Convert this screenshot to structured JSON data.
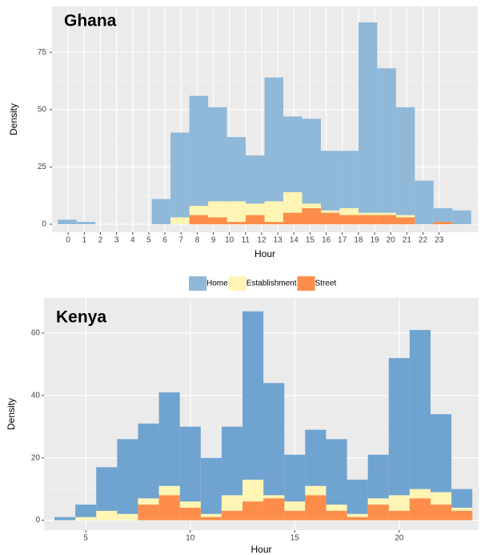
{
  "chart_data": [
    {
      "type": "histogram",
      "title": "Ghana",
      "xlabel": "Hour",
      "ylabel": "Density",
      "bins": [
        -0.64,
        0.525,
        1.69,
        2.855,
        4.02,
        5.185,
        6.35,
        7.515,
        8.68,
        9.845,
        11.01,
        12.175,
        13.34,
        14.505,
        15.67,
        16.835,
        18.0,
        19.165,
        20.33,
        21.495,
        22.66,
        23.825,
        24.99
      ],
      "series": [
        {
          "name": "Home",
          "color": "#8fb8d9",
          "values": [
            2,
            1,
            0,
            0,
            0,
            11,
            40,
            56,
            51,
            38,
            30,
            64,
            47,
            46,
            32,
            32,
            88,
            68,
            51,
            19,
            7,
            6
          ]
        },
        {
          "name": "Establishment",
          "color": "#fff5b5",
          "values": [
            0,
            0,
            0,
            0,
            0,
            0,
            3,
            8,
            10,
            10,
            9,
            10,
            14,
            9,
            6,
            7,
            5,
            5,
            4,
            0,
            1,
            0
          ]
        },
        {
          "name": "Street",
          "color": "#fd8d4a",
          "values": [
            0,
            0,
            0,
            0,
            0,
            0,
            0,
            4,
            3,
            1,
            4,
            1,
            5,
            7,
            5,
            4,
            4,
            4,
            3,
            0,
            1,
            0
          ]
        }
      ],
      "xlim": [
        -1,
        25.4
      ],
      "xticks": [
        0,
        1,
        2,
        3,
        4,
        5,
        6,
        7,
        8,
        9,
        10,
        11,
        12,
        13,
        14,
        15,
        16,
        17,
        18,
        19,
        20,
        21,
        22,
        23
      ],
      "ylim": [
        -3.5,
        95
      ],
      "yticks": [
        0,
        25,
        50,
        75
      ],
      "grid": true,
      "legend": "bottom"
    },
    {
      "type": "histogram",
      "title": "Kenya",
      "xlabel": "Hour",
      "ylabel": "Density",
      "bins": [
        3.5,
        4.5,
        5.5,
        6.5,
        7.5,
        8.5,
        9.5,
        10.5,
        11.5,
        12.5,
        13.5,
        14.5,
        15.5,
        16.5,
        17.5,
        18.5,
        19.5,
        20.5,
        21.5,
        22.5,
        23.5
      ],
      "series": [
        {
          "color": "#6fa3d0",
          "values": [
            1,
            5,
            17,
            26,
            31,
            41,
            30,
            20,
            30,
            67,
            44,
            21,
            29,
            26,
            13,
            21,
            52,
            61,
            34,
            10
          ]
        },
        {
          "color": "#fff5b5",
          "values": [
            0,
            1,
            3,
            2,
            7,
            11,
            6,
            2,
            8,
            13,
            8,
            6,
            11,
            5,
            2,
            7,
            8,
            10,
            9,
            4
          ]
        },
        {
          "color": "#fd8d4a",
          "values": [
            0,
            0,
            0,
            0,
            5,
            8,
            4,
            1,
            3,
            6,
            7,
            3,
            8,
            3,
            1,
            5,
            3,
            7,
            5,
            3
          ]
        }
      ],
      "xlim": [
        3,
        23.8
      ],
      "xticks": [
        5,
        10,
        15,
        20
      ],
      "ylim": [
        -3.2,
        71.3
      ],
      "yticks": [
        0,
        20,
        40,
        60
      ],
      "grid": true
    }
  ]
}
